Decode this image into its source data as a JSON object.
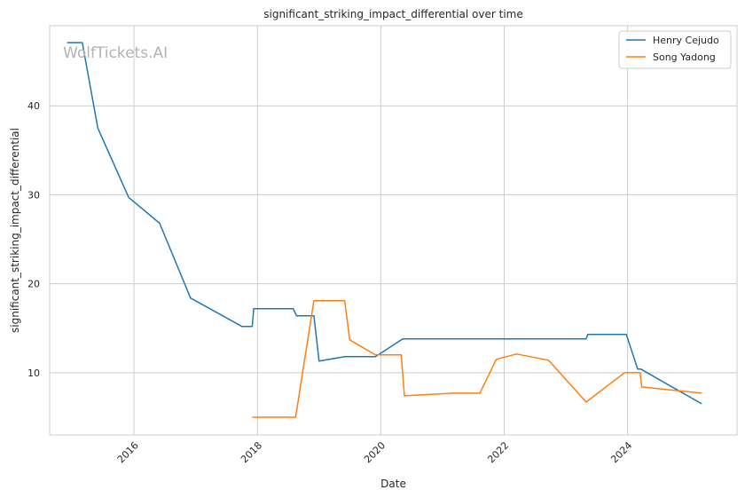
{
  "chart_data": {
    "type": "line",
    "title": "significant_striking_impact_differential over time",
    "xlabel": "Date",
    "ylabel": "significant_striking_impact_differential",
    "watermark": "WolfTickets.AI",
    "xlim": [
      "2014-08-20",
      "2025-10-10"
    ],
    "ylim": [
      3,
      49
    ],
    "x_ticks": [
      {
        "date": "2016-01-01",
        "label": "2016"
      },
      {
        "date": "2018-01-01",
        "label": "2018"
      },
      {
        "date": "2020-01-01",
        "label": "2020"
      },
      {
        "date": "2022-01-01",
        "label": "2022"
      },
      {
        "date": "2024-01-01",
        "label": "2024"
      }
    ],
    "y_ticks": [
      10,
      20,
      30,
      40
    ],
    "grid": true,
    "legend_position": "top-right",
    "series": [
      {
        "name": "Henry Cejudo",
        "color": "#1f77b4",
        "points": [
          [
            "2014-12-01",
            47.1
          ],
          [
            "2015-03-01",
            47.1
          ],
          [
            "2015-06-01",
            37.5
          ],
          [
            "2015-12-01",
            29.7
          ],
          [
            "2016-06-01",
            26.8
          ],
          [
            "2016-12-01",
            18.4
          ],
          [
            "2017-10-01",
            15.2
          ],
          [
            "2017-12-01",
            15.2
          ],
          [
            "2017-12-10",
            17.2
          ],
          [
            "2018-08-01",
            17.2
          ],
          [
            "2018-08-20",
            16.4
          ],
          [
            "2018-12-01",
            16.4
          ],
          [
            "2019-01-01",
            11.3
          ],
          [
            "2019-06-01",
            11.8
          ],
          [
            "2019-12-01",
            11.8
          ],
          [
            "2020-05-10",
            13.8
          ],
          [
            "2023-05-01",
            13.8
          ],
          [
            "2023-05-10",
            14.3
          ],
          [
            "2023-12-25",
            14.3
          ],
          [
            "2024-03-01",
            10.4
          ],
          [
            "2024-03-20",
            10.4
          ],
          [
            "2025-03-15",
            6.5
          ]
        ]
      },
      {
        "name": "Song Yadong",
        "color": "#ff7f0e",
        "points": [
          [
            "2017-12-01",
            5.0
          ],
          [
            "2018-08-15",
            5.0
          ],
          [
            "2018-12-01",
            18.1
          ],
          [
            "2019-06-01",
            18.1
          ],
          [
            "2019-07-01",
            13.7
          ],
          [
            "2019-12-01",
            12.0
          ],
          [
            "2020-05-01",
            12.0
          ],
          [
            "2020-05-20",
            7.4
          ],
          [
            "2021-03-01",
            7.7
          ],
          [
            "2021-08-10",
            7.7
          ],
          [
            "2021-11-15",
            11.5
          ],
          [
            "2022-03-15",
            12.1
          ],
          [
            "2022-09-20",
            11.4
          ],
          [
            "2023-05-01",
            6.7
          ],
          [
            "2023-12-15",
            10.0
          ],
          [
            "2024-03-15",
            10.0
          ],
          [
            "2024-03-25",
            8.4
          ],
          [
            "2025-03-15",
            7.7
          ]
        ]
      }
    ]
  }
}
